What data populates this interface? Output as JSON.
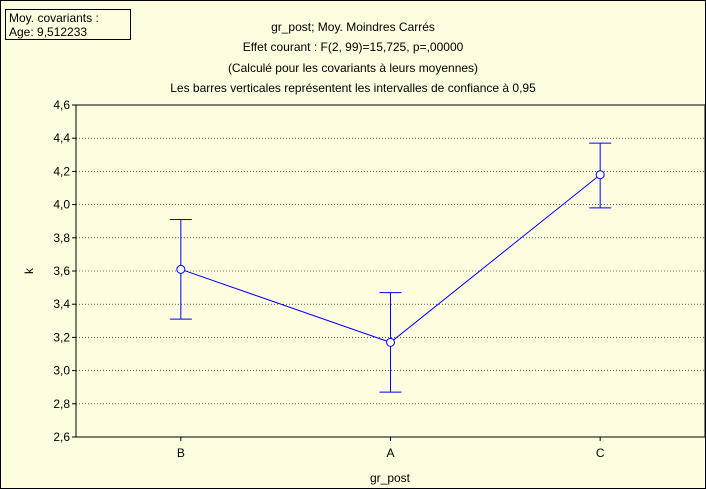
{
  "covariates_box": {
    "line1": "Moy. covariants :",
    "line2": "Age: 9,512233"
  },
  "chart_data": {
    "type": "line",
    "title": "gr_post; Moy. Moindres Carrés",
    "subtitle_lines": [
      "Effet courant : F(2, 99)=15,725, p=,00000",
      "(Calculé pour les covariants à leurs moyennes)",
      "Les barres verticales représentent les intervalles de confiance à 0,95"
    ],
    "xlabel": "gr_post",
    "ylabel": "k",
    "categories": [
      "B",
      "A",
      "C"
    ],
    "values": [
      3.61,
      3.17,
      4.18
    ],
    "ci_lower": [
      3.31,
      2.87,
      3.98
    ],
    "ci_upper": [
      3.91,
      3.47,
      4.37
    ],
    "ylim": [
      2.6,
      4.6
    ],
    "yticks": [
      2.6,
      2.8,
      3.0,
      3.2,
      3.4,
      3.6,
      3.8,
      4.0,
      4.2,
      4.4,
      4.6
    ],
    "ytick_labels": [
      "2,6",
      "2,8",
      "3,0",
      "3,2",
      "3,4",
      "3,6",
      "3,8",
      "4,0",
      "4,2",
      "4,4",
      "4,6"
    ],
    "grid": true,
    "line_color": "#0000ff"
  }
}
